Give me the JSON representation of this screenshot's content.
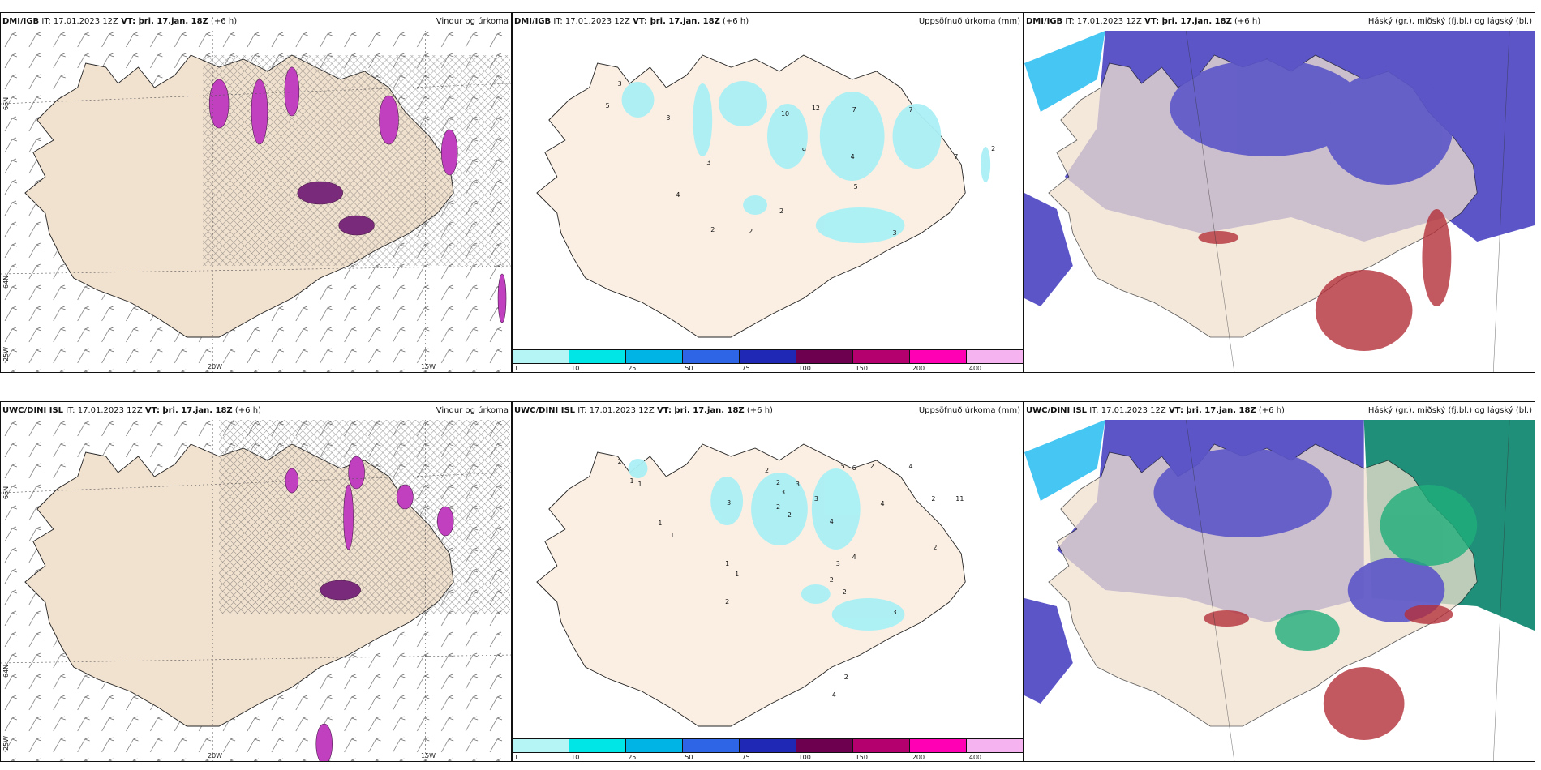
{
  "panels": [
    {
      "model": "DMI/IGB",
      "it": "IT: 17.01.2023 12Z",
      "vt": "VT: þri. 17.jan. 18Z",
      "lead": "(+6 h)",
      "title": "Vindur og úrkoma",
      "lon_labels": [
        "20W",
        "15W"
      ],
      "lat_labels": [
        "66N",
        "64N",
        "25W"
      ]
    },
    {
      "model": "DMI/IGB",
      "it": "IT: 17.01.2023 12Z",
      "vt": "VT: þri. 17.jan. 18Z",
      "lead": "(+6 h)",
      "title": "Uppsöfnuð úrkoma (mm)",
      "values": [
        "3",
        "5",
        "3",
        "3",
        "4",
        "2",
        "10",
        "12",
        "7",
        "7",
        "9",
        "4",
        "5",
        "2",
        "3",
        "2",
        "7",
        "2"
      ]
    },
    {
      "model": "DMI/IGB",
      "it": "IT: 17.01.2023 12Z",
      "vt": "VT: þri. 17.jan. 18Z",
      "lead": "(+6 h)",
      "title": "Háský (gr.), miðský (fj.bl.) og lágský (bl.)"
    },
    {
      "model": "UWC/DINI ISL",
      "it": "IT: 17.01.2023 12Z",
      "vt": "VT: þri. 17.jan. 18Z",
      "lead": "(+6 h)",
      "title": "Vindur og úrkoma",
      "lon_labels": [
        "20W",
        "15W"
      ],
      "lat_labels": [
        "66N",
        "64N",
        "25W"
      ]
    },
    {
      "model": "UWC/DINI ISL",
      "it": "IT: 17.01.2023 12Z",
      "vt": "VT: þri. 17.jan. 18Z",
      "lead": "(+6 h)",
      "title": "Uppsöfnuð úrkoma (mm)",
      "values": [
        "2",
        "1",
        "1",
        "1",
        "1",
        "3",
        "2",
        "2",
        "3",
        "3",
        "2",
        "2",
        "3",
        "4",
        "5",
        "6",
        "2",
        "4",
        "4",
        "11",
        "2",
        "3",
        "4",
        "2",
        "2",
        "2",
        "1",
        "1",
        "2",
        "3",
        "2",
        "4"
      ]
    },
    {
      "model": "UWC/DINI ISL",
      "it": "IT: 17.01.2023 12Z",
      "vt": "VT: þri. 17.jan. 18Z",
      "lead": "(+6 h)",
      "title": "Háský (gr.), miðský (fj.bl.) og lágský (bl.)"
    }
  ],
  "colorbar": {
    "ticks": [
      "1",
      "10",
      "25",
      "50",
      "75",
      "100",
      "150",
      "200",
      "400"
    ],
    "colors": [
      "#b6f5f5",
      "#00e6e6",
      "#00b4e6",
      "#2e64e6",
      "#1e28b4",
      "#6e0050",
      "#b4006e",
      "#ff00b4",
      "#f5b4f0"
    ]
  },
  "colors": {
    "land": "#f1e1cf",
    "ocean": "#ffffff",
    "precip_light": "#aaf0f5",
    "precip_heavy": "#c040c0",
    "low_cloud": "#5b55c8",
    "mid_cloud": "#2f7fd8",
    "high_cloud": "#1fae7a",
    "red_cloud": "#b3303a"
  }
}
